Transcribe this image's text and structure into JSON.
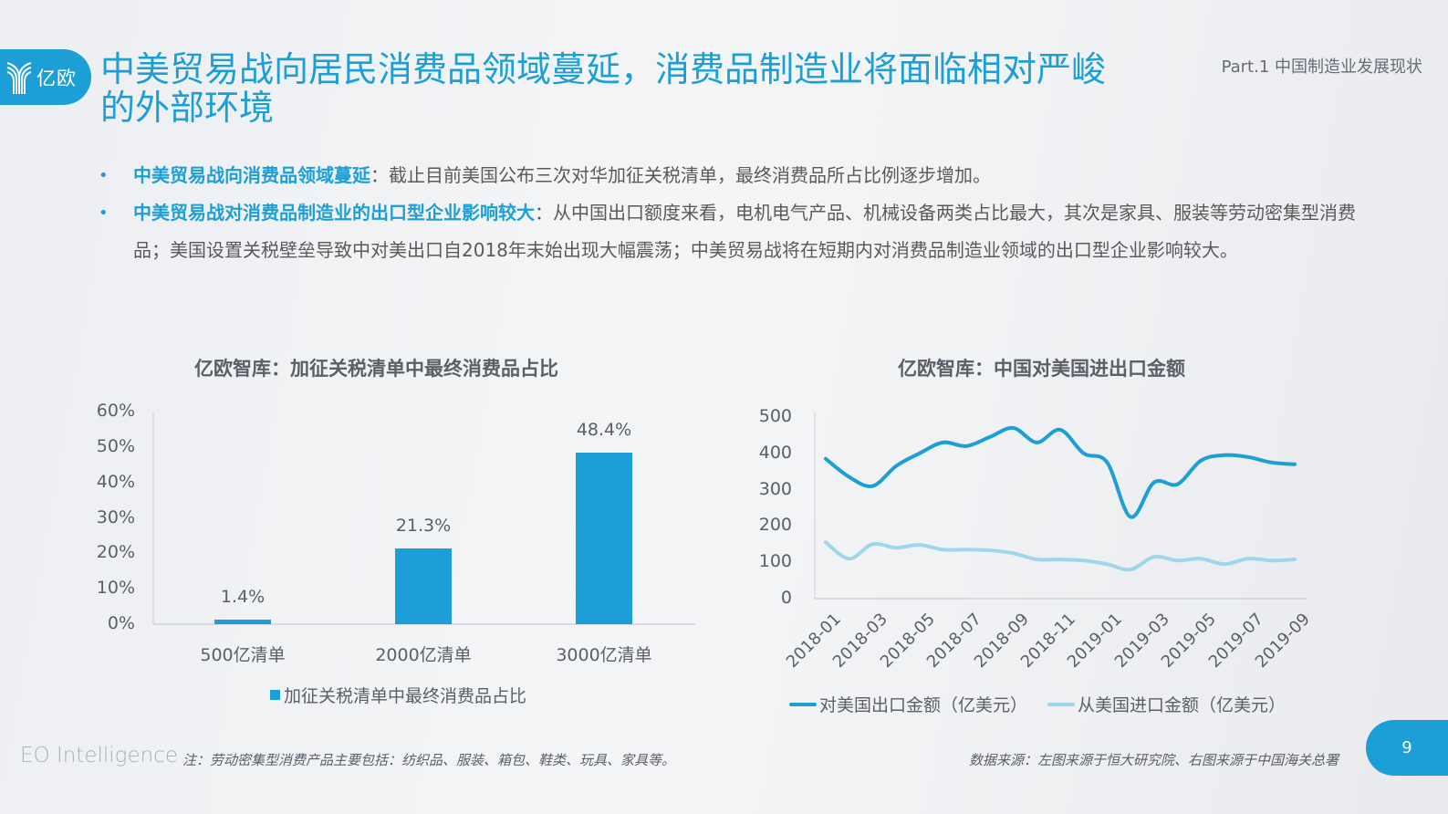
{
  "header": {
    "logo_text": "亿欧",
    "title": "中美贸易战向居民消费品领域蔓延，消费品制造业将面临相对严峻的外部环境",
    "part_label": "Part.1 中国制造业发展现状"
  },
  "bullets": [
    {
      "highlight": "中美贸易战向消费品领域蔓延",
      "text": "：截止目前美国公布三次对华加征关税清单，最终消费品所占比例逐步增加。"
    },
    {
      "highlight": "中美贸易战对消费品制造业的出口型企业影响较大",
      "text": "：从中国出口额度来看，电机电气产品、机械设备两类占比最大，其次是家具、服装等劳动密集型消费品；美国设置关税壁垒导致中对美出口自2018年末始出现大幅震荡；中美贸易战将在短期内对消费品制造业领域的出口型企业影响较大。"
    }
  ],
  "colors": {
    "accent": "#1b9fd6",
    "import_line": "#9fd6ec",
    "text": "#5a5f68"
  },
  "chart_data": [
    {
      "type": "bar",
      "title": "亿欧智库：加征关税清单中最终消费品占比",
      "categories": [
        "500亿清单",
        "2000亿清单",
        "3000亿清单"
      ],
      "values": [
        1.4,
        21.3,
        48.4
      ],
      "value_labels": [
        "1.4%",
        "21.3%",
        "48.4%"
      ],
      "y_ticks": [
        "0%",
        "10%",
        "20%",
        "30%",
        "40%",
        "50%",
        "60%"
      ],
      "ylim": [
        0,
        60
      ],
      "xlabel": "",
      "ylabel": "",
      "legend": [
        "加征关税清单中最终消费品占比"
      ],
      "legend_position": "bottom",
      "grid": false
    },
    {
      "type": "line",
      "title": "亿欧智库：中国对美国进出口金额",
      "x": [
        "2018-01",
        "2018-02",
        "2018-03",
        "2018-04",
        "2018-05",
        "2018-06",
        "2018-07",
        "2018-08",
        "2018-09",
        "2018-10",
        "2018-11",
        "2018-12",
        "2019-01",
        "2019-02",
        "2019-03",
        "2019-04",
        "2019-05",
        "2019-06",
        "2019-07",
        "2019-08",
        "2019-09"
      ],
      "x_tick_labels": [
        "2018-01",
        "2018-03",
        "2018-05",
        "2018-07",
        "2018-09",
        "2018-11",
        "2019-01",
        "2019-03",
        "2019-05",
        "2019-07",
        "2019-09"
      ],
      "series": [
        {
          "name": "对美国出口金额（亿美元）",
          "color": "#1b9fd6",
          "values": [
            385,
            335,
            310,
            365,
            400,
            430,
            420,
            445,
            470,
            430,
            465,
            400,
            375,
            225,
            320,
            315,
            380,
            395,
            390,
            375,
            370
          ]
        },
        {
          "name": "从美国进口金额（亿美元）",
          "color": "#9fd6ec",
          "values": [
            155,
            110,
            150,
            140,
            148,
            135,
            135,
            133,
            125,
            108,
            108,
            105,
            95,
            80,
            115,
            105,
            110,
            95,
            110,
            105,
            108
          ]
        }
      ],
      "y_ticks": [
        "0",
        "100",
        "200",
        "300",
        "400",
        "500"
      ],
      "ylim": [
        0,
        500
      ],
      "xlabel": "",
      "ylabel": "",
      "legend_position": "bottom",
      "grid": false
    }
  ],
  "footer": {
    "brand": "EO Intelligence",
    "note": "注：劳动密集型消费产品主要包括：纺织品、服装、箱包、鞋类、玩具、家具等。",
    "source": "数据来源：左图来源于恒大研究院、右图来源于中国海关总署",
    "page_number": "9"
  }
}
